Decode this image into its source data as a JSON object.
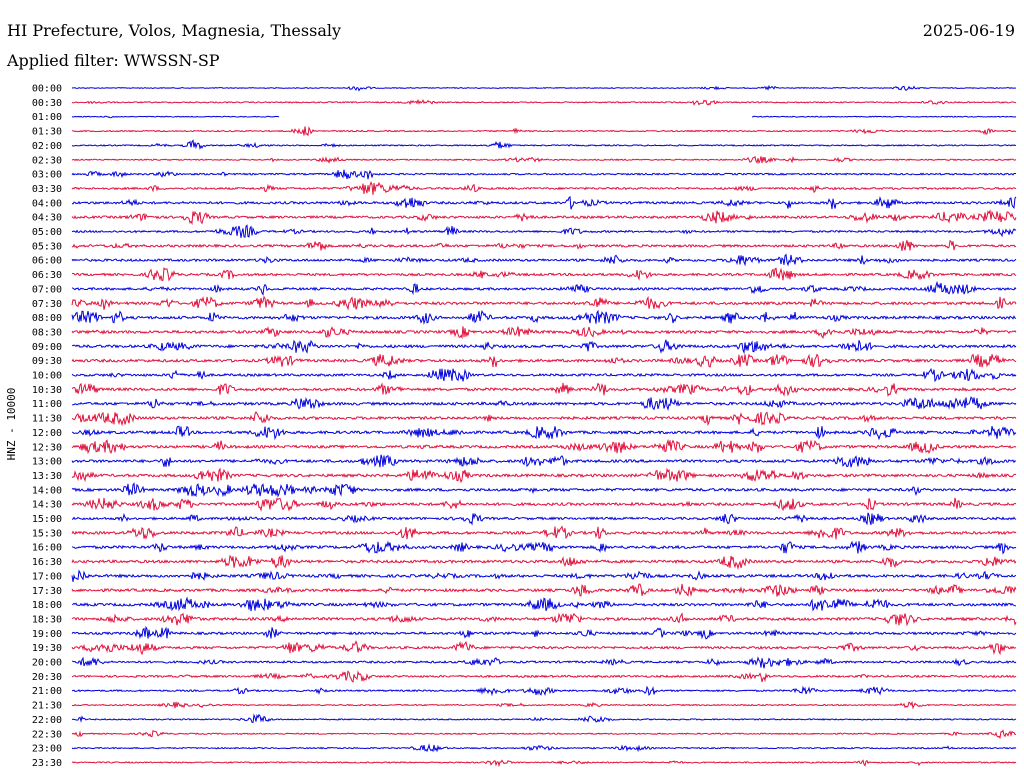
{
  "header": {
    "station": "HI Prefecture, Volos, Magnesia, Thessaly",
    "date": "2025-06-19",
    "filter": "Applied filter: WWSSN-SP"
  },
  "chart_data": {
    "type": "line",
    "title": "HI Prefecture, Volos, Magnesia, Thessaly",
    "ylabel": "HNZ - 10000",
    "rows": [
      "00:00",
      "00:30",
      "01:00",
      "01:30",
      "02:00",
      "02:30",
      "03:00",
      "03:30",
      "04:00",
      "04:30",
      "05:00",
      "05:30",
      "06:00",
      "06:30",
      "07:00",
      "07:30",
      "08:00",
      "08:30",
      "09:00",
      "09:30",
      "10:00",
      "10:30",
      "11:00",
      "11:30",
      "12:00",
      "12:30",
      "13:00",
      "13:30",
      "14:00",
      "14:30",
      "15:00",
      "15:30",
      "16:00",
      "16:30",
      "17:00",
      "17:30",
      "18:00",
      "18:30",
      "19:00",
      "19:30",
      "20:00",
      "20:30",
      "21:00",
      "21:30",
      "22:00",
      "22:30",
      "23:00",
      "23:30"
    ],
    "activity": [
      1,
      2,
      1,
      2,
      2,
      2,
      3,
      4,
      5,
      5,
      4,
      5,
      5,
      5,
      5,
      6,
      6,
      6,
      6,
      6,
      5,
      6,
      6,
      6,
      6,
      6,
      6,
      6,
      6,
      6,
      5,
      6,
      6,
      6,
      6,
      6,
      6,
      6,
      5,
      5,
      4,
      4,
      3,
      2,
      2,
      2,
      2,
      2
    ],
    "row_colors": [
      "#0000dd",
      "#e0103c"
    ],
    "gaps": [
      {
        "row": "01:00",
        "from": 0.22,
        "to": 0.72
      }
    ],
    "grid": false
  }
}
